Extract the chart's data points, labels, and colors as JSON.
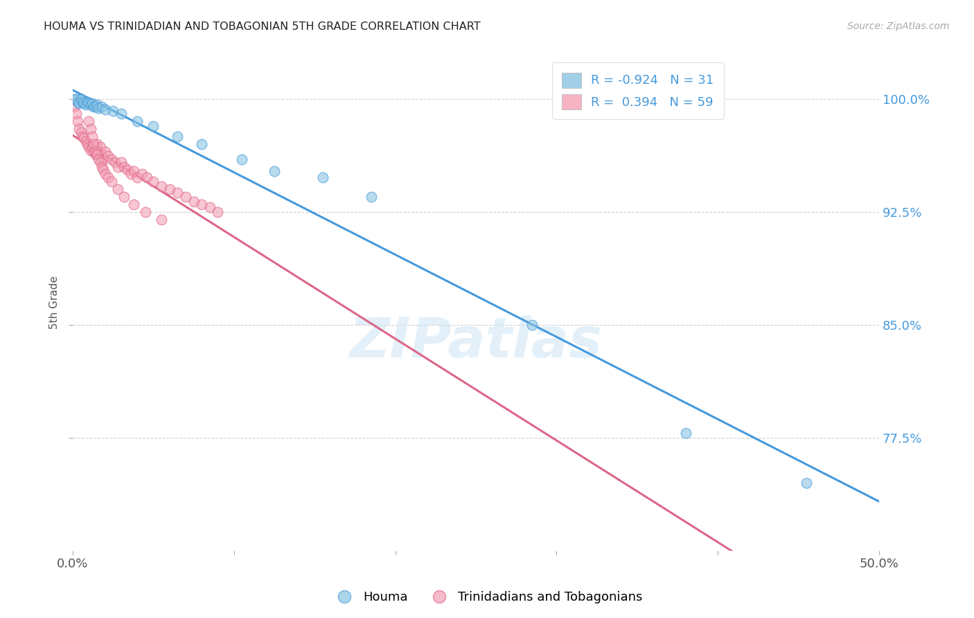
{
  "title": "HOUMA VS TRINIDADIAN AND TOBAGONIAN 5TH GRADE CORRELATION CHART",
  "source": "Source: ZipAtlas.com",
  "ylabel": "5th Grade",
  "xlim": [
    0.0,
    0.5
  ],
  "ylim": [
    0.7,
    1.03
  ],
  "xticks": [
    0.0,
    0.1,
    0.2,
    0.3,
    0.4,
    0.5
  ],
  "xticklabels": [
    "0.0%",
    "",
    "",
    "",
    "",
    "50.0%"
  ],
  "yticks": [
    0.775,
    0.85,
    0.925,
    1.0
  ],
  "yticklabels": [
    "77.5%",
    "85.0%",
    "92.5%",
    "100.0%"
  ],
  "legend_labels": [
    "Houma",
    "Trinidadians and Tobagonians"
  ],
  "houma_R": -0.924,
  "houma_N": 31,
  "tnt_R": 0.394,
  "tnt_N": 59,
  "houma_color": "#89c4e1",
  "tnt_color": "#f4a0b5",
  "houma_line_color": "#4499dd",
  "tnt_line_color": "#dd6688",
  "background_color": "#ffffff",
  "watermark": "ZIPatlas",
  "houma_x": [
    0.001,
    0.002,
    0.003,
    0.004,
    0.005,
    0.006,
    0.007,
    0.008,
    0.009,
    0.01,
    0.011,
    0.012,
    0.013,
    0.014,
    0.015,
    0.016,
    0.018,
    0.02,
    0.025,
    0.03,
    0.04,
    0.05,
    0.065,
    0.08,
    0.105,
    0.125,
    0.155,
    0.185,
    0.285,
    0.38,
    0.455
  ],
  "houma_y": [
    1.0,
    1.0,
    0.998,
    0.997,
    1.0,
    0.998,
    0.997,
    0.996,
    0.998,
    0.997,
    0.996,
    0.997,
    0.995,
    0.995,
    0.996,
    0.994,
    0.995,
    0.993,
    0.992,
    0.99,
    0.985,
    0.982,
    0.975,
    0.97,
    0.96,
    0.952,
    0.948,
    0.935,
    0.85,
    0.778,
    0.745
  ],
  "tnt_x": [
    0.001,
    0.002,
    0.003,
    0.004,
    0.005,
    0.006,
    0.007,
    0.008,
    0.009,
    0.01,
    0.011,
    0.012,
    0.013,
    0.014,
    0.015,
    0.016,
    0.017,
    0.018,
    0.019,
    0.02,
    0.022,
    0.024,
    0.026,
    0.028,
    0.03,
    0.032,
    0.034,
    0.036,
    0.038,
    0.04,
    0.043,
    0.046,
    0.05,
    0.055,
    0.06,
    0.065,
    0.07,
    0.075,
    0.08,
    0.085,
    0.09,
    0.01,
    0.011,
    0.012,
    0.013,
    0.014,
    0.015,
    0.016,
    0.017,
    0.018,
    0.019,
    0.02,
    0.022,
    0.024,
    0.028,
    0.032,
    0.038,
    0.045,
    0.055
  ],
  "tnt_y": [
    0.995,
    0.99,
    0.985,
    0.98,
    0.978,
    0.975,
    0.974,
    0.972,
    0.97,
    0.968,
    0.966,
    0.968,
    0.965,
    0.963,
    0.97,
    0.965,
    0.968,
    0.963,
    0.96,
    0.965,
    0.962,
    0.96,
    0.958,
    0.955,
    0.958,
    0.955,
    0.953,
    0.95,
    0.952,
    0.948,
    0.95,
    0.948,
    0.945,
    0.942,
    0.94,
    0.938,
    0.935,
    0.932,
    0.93,
    0.928,
    0.925,
    0.985,
    0.98,
    0.975,
    0.97,
    0.965,
    0.963,
    0.96,
    0.958,
    0.955,
    0.953,
    0.95,
    0.948,
    0.945,
    0.94,
    0.935,
    0.93,
    0.925,
    0.92
  ]
}
